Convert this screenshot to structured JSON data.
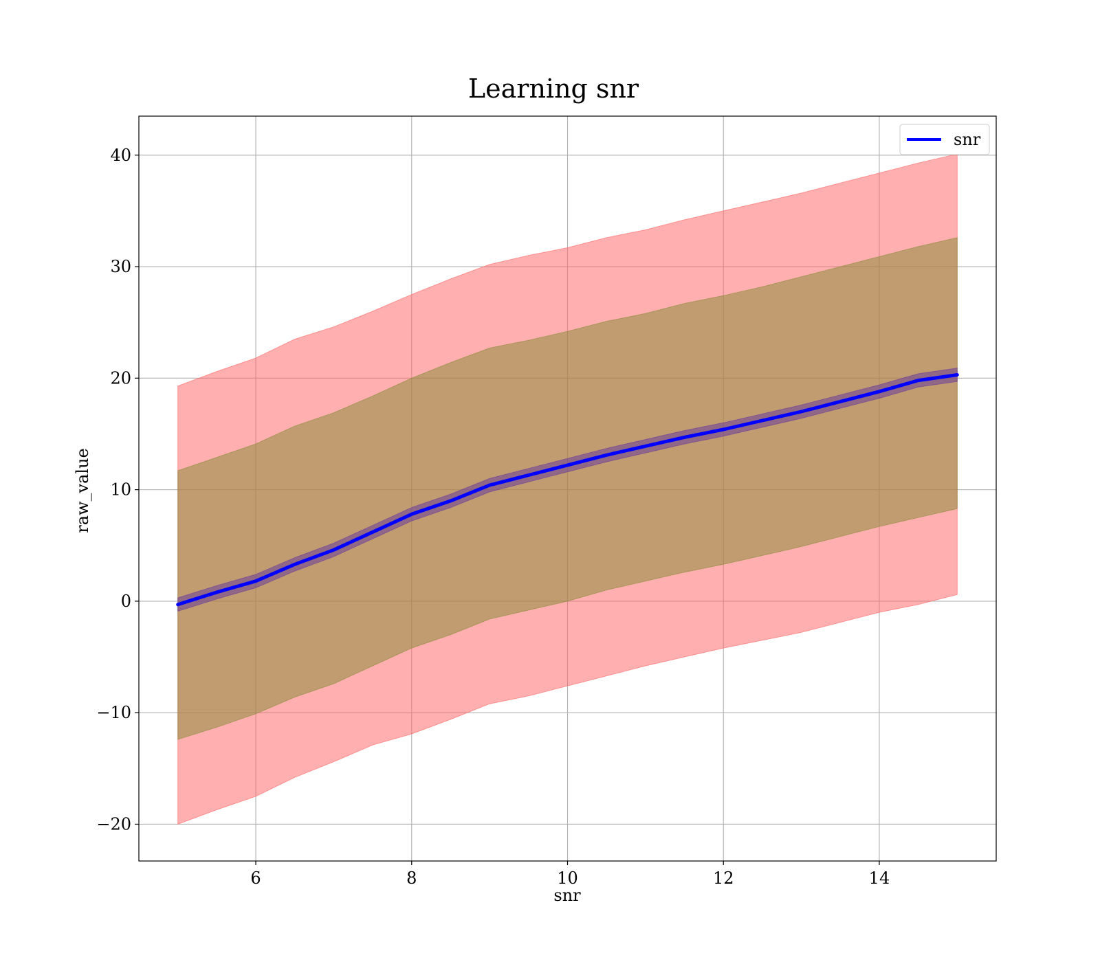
{
  "chart_data": {
    "type": "line",
    "title": "Learning snr",
    "xlabel": "snr",
    "ylabel": "raw_value",
    "xlim": [
      4.5,
      15.5
    ],
    "ylim": [
      -23.3,
      43.5
    ],
    "xticks": [
      6,
      8,
      10,
      12,
      14
    ],
    "xtick_labels": [
      "6",
      "8",
      "10",
      "12",
      "14"
    ],
    "yticks": [
      -20,
      -10,
      0,
      10,
      20,
      30,
      40
    ],
    "ytick_labels": [
      "−20",
      "−10",
      "0",
      "10",
      "20",
      "30",
      "40"
    ],
    "grid": true,
    "legend_position": "top-right",
    "x": [
      5,
      5.5,
      6,
      6.5,
      7,
      7.5,
      8,
      8.5,
      9,
      9.5,
      10,
      10.5,
      11,
      11.5,
      12,
      12.5,
      13,
      13.5,
      14,
      14.5,
      15
    ],
    "series": [
      {
        "name": "snr",
        "color": "#0000ff",
        "values": [
          -0.3,
          0.8,
          1.8,
          3.3,
          4.6,
          6.2,
          7.8,
          9.0,
          10.4,
          11.3,
          12.2,
          13.1,
          13.9,
          14.7,
          15.4,
          16.2,
          17.0,
          17.9,
          18.8,
          19.8,
          20.3
        ]
      }
    ],
    "bands": [
      {
        "role": "outer",
        "color": "#ff6666",
        "upper": [
          19.3,
          20.6,
          21.8,
          23.5,
          24.6,
          26.0,
          27.5,
          28.9,
          30.2,
          31.0,
          31.7,
          32.6,
          33.3,
          34.2,
          35.0,
          35.8,
          36.6,
          37.5,
          38.4,
          39.3,
          40.1
        ],
        "lower": [
          -20.0,
          -18.7,
          -17.5,
          -15.8,
          -14.4,
          -12.9,
          -11.9,
          -10.6,
          -9.2,
          -8.5,
          -7.6,
          -6.7,
          -5.8,
          -5.0,
          -4.2,
          -3.5,
          -2.8,
          -1.9,
          -1.0,
          -0.3,
          0.6
        ]
      },
      {
        "role": "middle",
        "color": "#8c8c3c",
        "upper": [
          11.7,
          12.9,
          14.1,
          15.7,
          16.9,
          18.4,
          20.0,
          21.4,
          22.7,
          23.4,
          24.2,
          25.1,
          25.8,
          26.7,
          27.4,
          28.2,
          29.1,
          30.0,
          30.9,
          31.8,
          32.6
        ],
        "lower": [
          -12.4,
          -11.3,
          -10.1,
          -8.6,
          -7.4,
          -5.8,
          -4.2,
          -3.0,
          -1.6,
          -0.8,
          0.0,
          1.0,
          1.8,
          2.6,
          3.3,
          4.1,
          4.9,
          5.8,
          6.7,
          7.5,
          8.3
        ]
      },
      {
        "role": "inner",
        "color": "#6a3d9a",
        "upper": [
          0.3,
          1.4,
          2.4,
          3.9,
          5.2,
          6.8,
          8.4,
          9.6,
          11.0,
          11.9,
          12.8,
          13.7,
          14.5,
          15.3,
          16.0,
          16.8,
          17.6,
          18.5,
          19.4,
          20.4,
          20.9
        ],
        "lower": [
          -0.9,
          0.2,
          1.2,
          2.7,
          4.0,
          5.6,
          7.2,
          8.4,
          9.8,
          10.7,
          11.6,
          12.5,
          13.3,
          14.1,
          14.8,
          15.6,
          16.4,
          17.3,
          18.2,
          19.2,
          19.7
        ]
      }
    ]
  }
}
